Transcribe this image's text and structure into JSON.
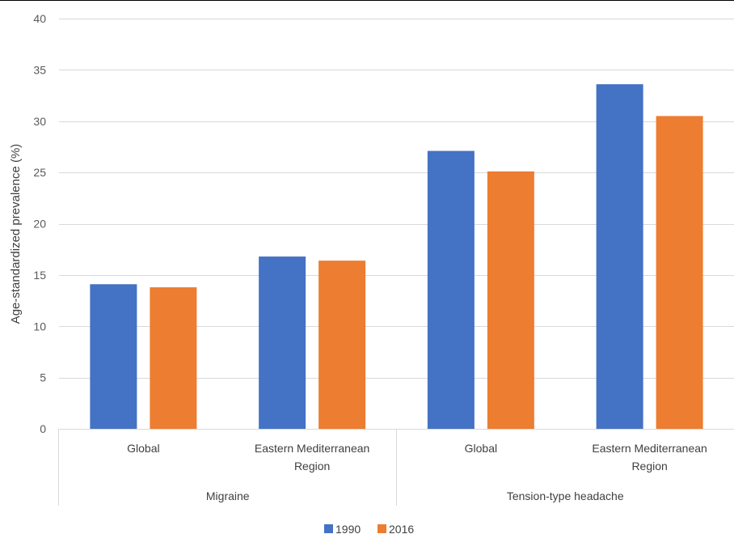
{
  "chart_data": {
    "type": "bar",
    "ylabel": "Age-standardized prevalence (%)",
    "ylim": [
      0,
      40
    ],
    "yticks": [
      0,
      5,
      10,
      15,
      20,
      25,
      30,
      35,
      40
    ],
    "grid": true,
    "legend_position": "bottom",
    "groups": [
      {
        "label": "Migraine",
        "categories": [
          [
            "Global"
          ],
          [
            "Eastern Mediterranean",
            "Region"
          ]
        ]
      },
      {
        "label": "Tension-type headache",
        "categories": [
          [
            "Global"
          ],
          [
            "Eastern Mediterranean",
            "Region"
          ]
        ]
      }
    ],
    "series": [
      {
        "name": "1990",
        "color": "#4472C4",
        "values": [
          14.1,
          16.8,
          27.1,
          33.6
        ]
      },
      {
        "name": "2016",
        "color": "#ED7D31",
        "values": [
          13.8,
          16.4,
          25.1,
          30.5
        ]
      }
    ]
  }
}
